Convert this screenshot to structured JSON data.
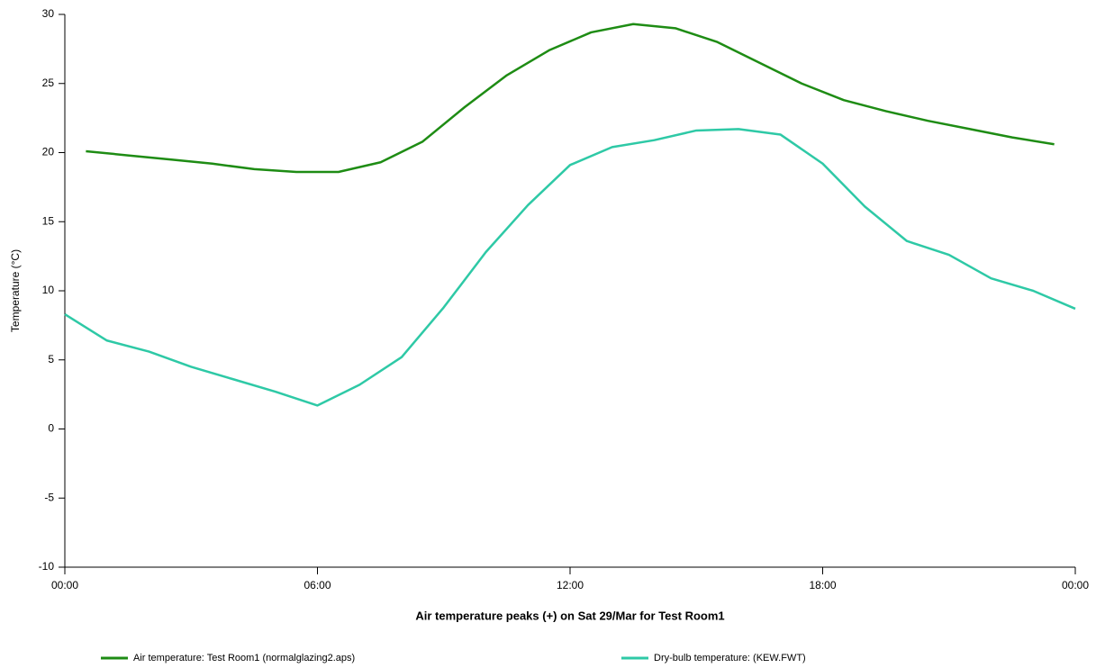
{
  "chart_data": {
    "type": "line",
    "title": "Air temperature peaks (+) on Sat 29/Mar for Test Room1",
    "y_label": "Temperature (°C)",
    "xlim": [
      0,
      24
    ],
    "xticks": [
      {
        "value": 0,
        "label": "00:00"
      },
      {
        "value": 6,
        "label": "06:00"
      },
      {
        "value": 12,
        "label": "12:00"
      },
      {
        "value": 18,
        "label": "18:00"
      },
      {
        "value": 24,
        "label": "00:00"
      }
    ],
    "ylim": [
      -10,
      30
    ],
    "yticks": [
      -10,
      -5,
      0,
      5,
      10,
      15,
      20,
      25,
      30
    ],
    "grid": false,
    "legend": "bottom",
    "series": [
      {
        "name": "Air temperature: Test Room1 (normalglazing2.aps)",
        "color": "#1e8c14",
        "x": [
          0.5,
          1.5,
          2.5,
          3.5,
          4.5,
          5.5,
          6.5,
          7.5,
          8.5,
          9.5,
          10.5,
          11.5,
          12.5,
          13.5,
          14.5,
          15.5,
          16.5,
          17.5,
          18.5,
          19.5,
          20.5,
          21.5,
          22.5,
          23.5
        ],
        "values": [
          20.1,
          19.8,
          19.5,
          19.2,
          18.8,
          18.6,
          18.6,
          19.3,
          20.8,
          23.3,
          25.6,
          27.4,
          28.7,
          29.3,
          29.0,
          28.0,
          26.5,
          25.0,
          23.8,
          23.0,
          22.3,
          21.7,
          21.1,
          20.6
        ]
      },
      {
        "name": "Dry-bulb temperature: (KEW.FWT)",
        "color": "#2ec9a6",
        "x": [
          0,
          1,
          2,
          3,
          4,
          5,
          6,
          7,
          8,
          9,
          10,
          11,
          12,
          13,
          14,
          15,
          16,
          17,
          18,
          19,
          20,
          21,
          22,
          23,
          24
        ],
        "values": [
          8.3,
          6.4,
          5.6,
          4.5,
          3.6,
          2.7,
          1.7,
          3.2,
          5.2,
          8.8,
          12.8,
          16.2,
          19.1,
          20.4,
          20.9,
          21.6,
          21.7,
          21.3,
          19.2,
          16.1,
          13.6,
          12.6,
          10.9,
          10.0,
          8.7
        ]
      }
    ]
  }
}
